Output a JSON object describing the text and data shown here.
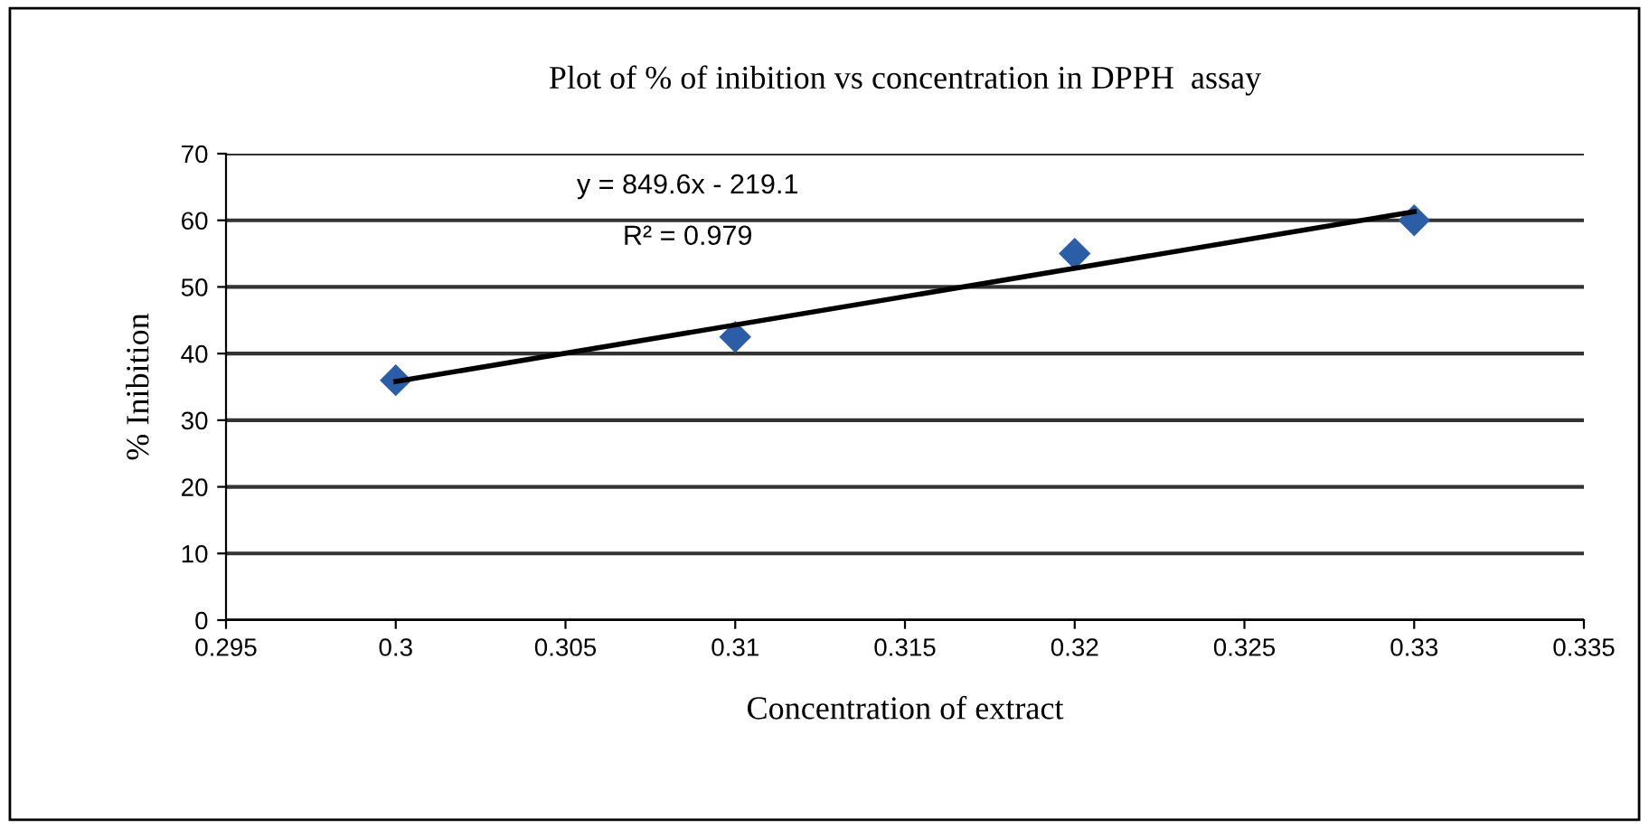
{
  "chart_data": {
    "type": "scatter",
    "title": "Plot of % of inibition vs concentration in DPPH  assay",
    "xlabel": "Concentration of extract",
    "ylabel": "% Inibition",
    "x": [
      0.3,
      0.31,
      0.32,
      0.33
    ],
    "series": [
      {
        "color": "#2c5ea8",
        "values": [
          36,
          42.5,
          55,
          60
        ],
        "marker": "diamond"
      },
      {
        "type": "line",
        "color": "#000000",
        "x": [
          0.3,
          0.33
        ],
        "values": [
          35.8,
          61.3
        ],
        "marker": "none"
      }
    ],
    "annotations": [
      "y = 849.6x - 219.1",
      "R² = 0.979"
    ],
    "xlim": [
      0.295,
      0.335
    ],
    "xticks": [
      0.295,
      0.3,
      0.305,
      0.31,
      0.315,
      0.32,
      0.325,
      0.33,
      0.335
    ],
    "ylim": [
      0,
      70
    ],
    "yticks": [
      0,
      10,
      20,
      30,
      40,
      50,
      60,
      70
    ],
    "grid": "y",
    "legend": false
  }
}
